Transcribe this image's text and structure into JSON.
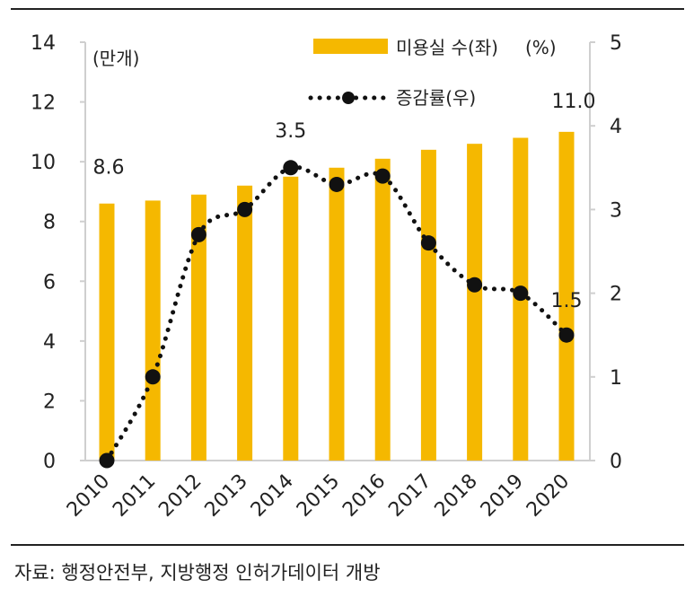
{
  "chart_data": {
    "type": "bar",
    "categories": [
      "2010",
      "2011",
      "2012",
      "2013",
      "2014",
      "2015",
      "2016",
      "2017",
      "2018",
      "2019",
      "2020"
    ],
    "series": [
      {
        "name": "미용실 수(좌)",
        "type": "bar",
        "axis": "left",
        "color": "#F5B800",
        "values": [
          8.6,
          8.7,
          8.9,
          9.2,
          9.5,
          9.8,
          10.1,
          10.4,
          10.6,
          10.8,
          11.0
        ]
      },
      {
        "name": "증감률(우)",
        "type": "line",
        "axis": "right",
        "color": "#111111",
        "style": "dotted-with-markers",
        "values": [
          0.0,
          1.0,
          2.7,
          3.0,
          3.5,
          3.3,
          3.4,
          2.6,
          2.1,
          2.0,
          1.5
        ]
      }
    ],
    "left_axis": {
      "unit": "(만개)",
      "ylim": [
        0,
        14
      ],
      "ticks": [
        "0",
        "2",
        "4",
        "6",
        "8",
        "10",
        "12",
        "14"
      ]
    },
    "right_axis": {
      "unit": "(%)",
      "ylim": [
        0,
        5
      ],
      "ticks": [
        "0",
        "1",
        "2",
        "3",
        "4",
        "5"
      ]
    },
    "annotations": [
      {
        "text": "8.6",
        "series": 0,
        "index": 0
      },
      {
        "text": "11.0",
        "series": 0,
        "index": 10
      },
      {
        "text": "3.5",
        "series": 1,
        "index": 4
      },
      {
        "text": "1.5",
        "series": 1,
        "index": 10
      }
    ],
    "legend": "top-right",
    "grid": false
  },
  "source": "자료: 행정안전부, 지방행정 인허가데이터 개방"
}
